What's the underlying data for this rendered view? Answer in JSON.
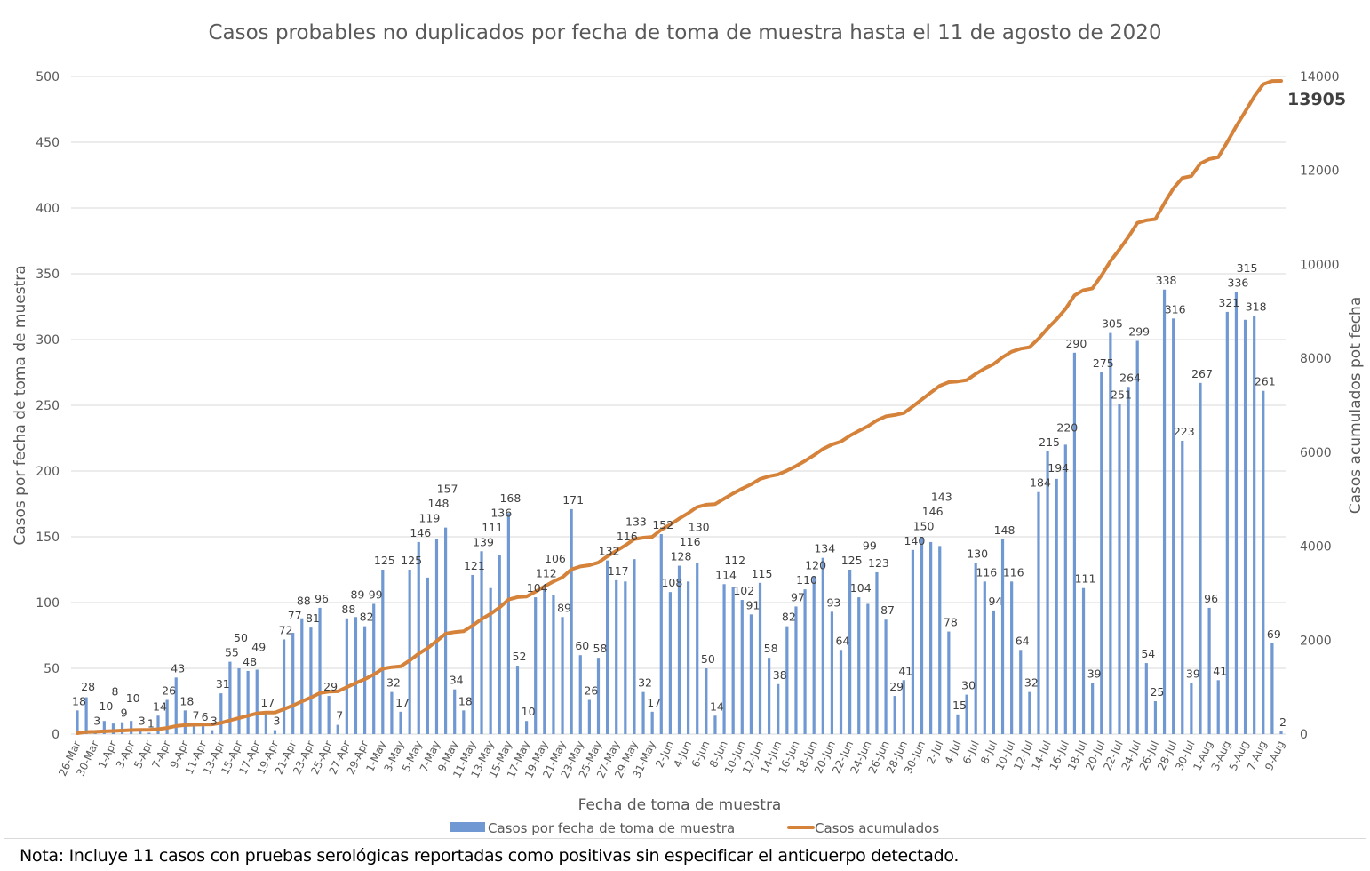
{
  "chart_data": {
    "type": "bar+line",
    "title": "Casos probables no duplicados por fecha de toma de muestra hasta el 11 de agosto de 2020",
    "xlabel": "Fecha de toma de muestra",
    "ylabel": "Casos por fecha de toma de muestra",
    "y2label": "Casos acumulados pot fecha",
    "ylim": [
      0,
      500
    ],
    "y_ticks": [
      0,
      50,
      100,
      150,
      200,
      250,
      300,
      350,
      400,
      450,
      500
    ],
    "y2lim": [
      0,
      14000
    ],
    "y2_ticks": [
      0,
      2000,
      4000,
      6000,
      8000,
      10000,
      12000,
      14000
    ],
    "grid": true,
    "legend_position": "bottom",
    "x_tick_labels": [
      "26-Mar",
      "30-Mar",
      "1-Apr",
      "3-Apr",
      "5-Apr",
      "7-Apr",
      "9-Apr",
      "11-Apr",
      "13-Apr",
      "15-Apr",
      "17-Apr",
      "19-Apr",
      "21-Apr",
      "23-Apr",
      "25-Apr",
      "27-Apr",
      "29-Apr",
      "1-May",
      "3-May",
      "5-May",
      "7-May",
      "9-May",
      "11-May",
      "13-May",
      "15-May",
      "17-May",
      "19-May",
      "21-May",
      "23-May",
      "25-May",
      "27-May",
      "29-May",
      "31-May",
      "2-Jun",
      "4-Jun",
      "6-Jun",
      "8-Jun",
      "10-Jun",
      "12-Jun",
      "14-Jun",
      "16-Jun",
      "18-Jun",
      "20-Jun",
      "22-Jun",
      "24-Jun",
      "26-Jun",
      "28-Jun",
      "30-Jun",
      "2-Jul",
      "4-Jul",
      "6-Jul",
      "8-Jul",
      "10-Jul",
      "12-Jul",
      "14-Jul",
      "16-Jul",
      "18-Jul",
      "20-Jul",
      "22-Jul",
      "24-Jul",
      "26-Jul",
      "28-Jul",
      "30-Jul",
      "1-Aug",
      "3-Aug",
      "5-Aug",
      "7-Aug",
      "9-Aug"
    ],
    "series": [
      {
        "name": "Casos por fecha de toma de muestra",
        "type": "bar",
        "axis": "left",
        "color": "#7098d2",
        "values": [
          18,
          28,
          3,
          10,
          8,
          9,
          10,
          3,
          1,
          14,
          26,
          43,
          18,
          7,
          6,
          3,
          31,
          55,
          50,
          48,
          49,
          17,
          3,
          72,
          77,
          88,
          81,
          96,
          29,
          7,
          88,
          89,
          82,
          99,
          125,
          32,
          17,
          125,
          146,
          119,
          148,
          157,
          34,
          18,
          121,
          139,
          111,
          136,
          168,
          52,
          10,
          104,
          112,
          106,
          89,
          171,
          60,
          26,
          58,
          132,
          117,
          116,
          133,
          32,
          17,
          152,
          108,
          128,
          116,
          130,
          50,
          14,
          114,
          112,
          102,
          91,
          115,
          58,
          38,
          82,
          97,
          110,
          120,
          134,
          93,
          64,
          125,
          104,
          99,
          123,
          87,
          29,
          41,
          140,
          150,
          146,
          143,
          78,
          15,
          30,
          130,
          116,
          94,
          148,
          116,
          64,
          32,
          184,
          215,
          194,
          220,
          290,
          111,
          39,
          275,
          305,
          251,
          264,
          299,
          54,
          25,
          338,
          316,
          223,
          39,
          267,
          96,
          41,
          321,
          336,
          315,
          318,
          261,
          69,
          2
        ]
      },
      {
        "name": "Casos acumulados",
        "type": "line",
        "axis": "right",
        "color": "#d5823a",
        "cumulative_of": "Casos por fecha de toma de muestra",
        "final_label": "13905"
      }
    ]
  },
  "note": "Nota: Incluye 11 casos con pruebas serológicas reportadas como positivas sin especificar el anticuerpo detectado."
}
